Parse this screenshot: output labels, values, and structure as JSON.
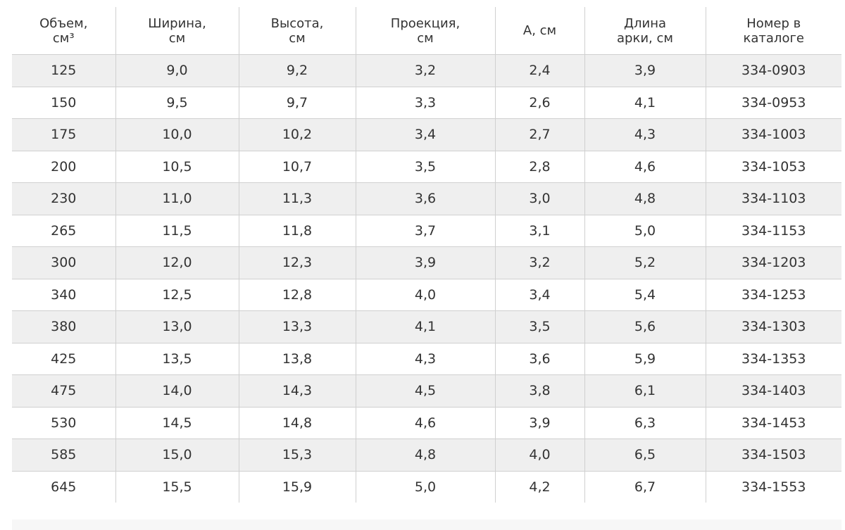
{
  "table": {
    "headers": [
      "Объем,\nсм³",
      "Ширина,\nсм",
      "Высота,\nсм",
      "Проекция,\nсм",
      "А, см",
      "Длина\nарки, см",
      "Номер в\nкаталоге"
    ],
    "rows": [
      [
        "125",
        "9,0",
        "9,2",
        "3,2",
        "2,4",
        "3,9",
        "334-0903"
      ],
      [
        "150",
        "9,5",
        "9,7",
        "3,3",
        "2,6",
        "4,1",
        "334-0953"
      ],
      [
        "175",
        "10,0",
        "10,2",
        "3,4",
        "2,7",
        "4,3",
        "334-1003"
      ],
      [
        "200",
        "10,5",
        "10,7",
        "3,5",
        "2,8",
        "4,6",
        "334-1053"
      ],
      [
        "230",
        "11,0",
        "11,3",
        "3,6",
        "3,0",
        "4,8",
        "334-1103"
      ],
      [
        "265",
        "11,5",
        "11,8",
        "3,7",
        "3,1",
        "5,0",
        "334-1153"
      ],
      [
        "300",
        "12,0",
        "12,3",
        "3,9",
        "3,2",
        "5,2",
        "334-1203"
      ],
      [
        "340",
        "12,5",
        "12,8",
        "4,0",
        "3,4",
        "5,4",
        "334-1253"
      ],
      [
        "380",
        "13,0",
        "13,3",
        "4,1",
        "3,5",
        "5,6",
        "334-1303"
      ],
      [
        "425",
        "13,5",
        "13,8",
        "4,3",
        "3,6",
        "5,9",
        "334-1353"
      ],
      [
        "475",
        "14,0",
        "14,3",
        "4,5",
        "3,8",
        "6,1",
        "334-1403"
      ],
      [
        "530",
        "14,5",
        "14,8",
        "4,6",
        "3,9",
        "6,3",
        "334-1453"
      ],
      [
        "585",
        "15,0",
        "15,3",
        "4,8",
        "4,0",
        "6,5",
        "334-1503"
      ],
      [
        "645",
        "15,5",
        "15,9",
        "5,0",
        "4,2",
        "6,7",
        "334-1553"
      ]
    ]
  },
  "colors": {
    "text": "#333333",
    "row_stripe": "#efefef",
    "border": "#d0d0d0"
  }
}
